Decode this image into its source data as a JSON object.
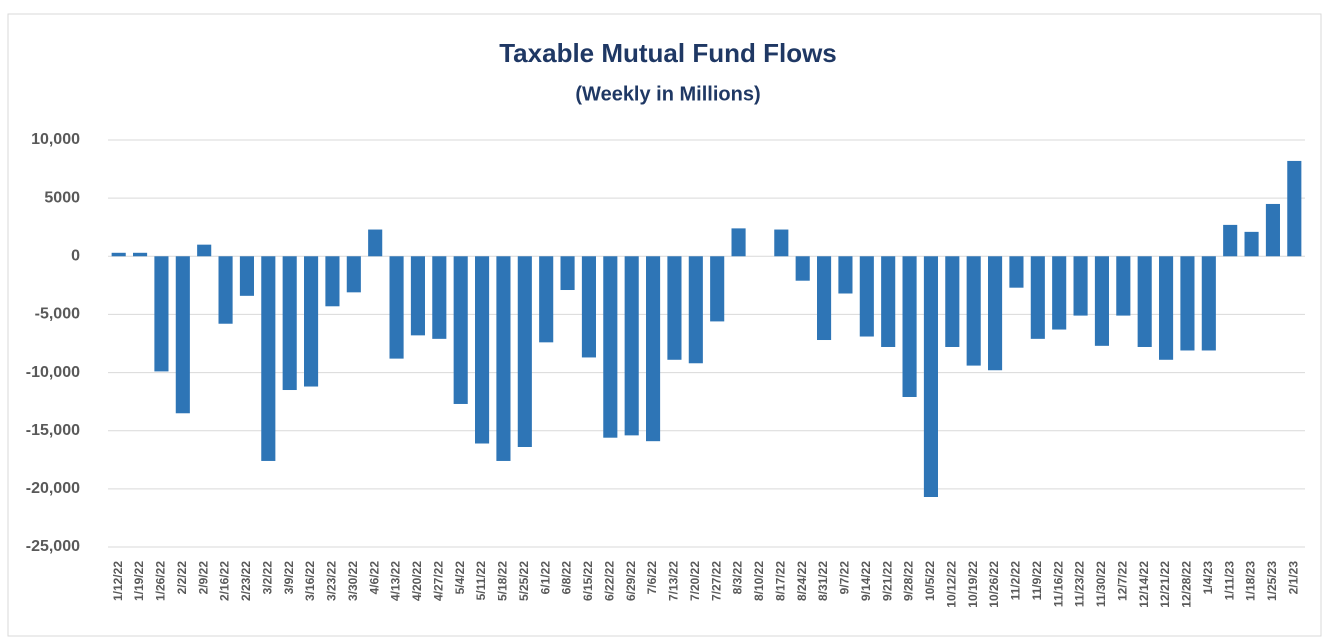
{
  "chart_data": {
    "type": "bar",
    "title": "Taxable Mutual Fund Flows",
    "subtitle": "(Weekly in Millions)",
    "categories": [
      "1/12/22",
      "1/19/22",
      "1/26/22",
      "2/2/22",
      "2/9/22",
      "2/16/22",
      "2/23/22",
      "3/2/22",
      "3/9/22",
      "3/16/22",
      "3/23/22",
      "3/30/22",
      "4/6/22",
      "4/13/22",
      "4/20/22",
      "4/27/22",
      "5/4/22",
      "5/11/22",
      "5/18/22",
      "5/25/22",
      "6/1/22",
      "6/8/22",
      "6/15/22",
      "6/22/22",
      "6/29/22",
      "7/6/22",
      "7/13/22",
      "7/20/22",
      "7/27/22",
      "8/3/22",
      "8/10/22",
      "8/17/22",
      "8/24/22",
      "8/31/22",
      "9/7/22",
      "9/14/22",
      "9/21/22",
      "9/28/22",
      "10/5/22",
      "10/12/22",
      "10/19/22",
      "10/26/22",
      "11/2/22",
      "11/9/22",
      "11/16/22",
      "11/23/22",
      "11/30/22",
      "12/7/22",
      "12/14/22",
      "12/21/22",
      "12/28/22",
      "1/4/23",
      "1/11/23",
      "1/18/23",
      "1/25/23",
      "2/1/23"
    ],
    "values": [
      300,
      300,
      -9900,
      -13500,
      1000,
      -5800,
      -3400,
      -17600,
      -11500,
      -11200,
      -4300,
      -3100,
      2300,
      -8800,
      -6800,
      -7100,
      -12700,
      -16100,
      -17600,
      -16400,
      -7400,
      -2900,
      -8700,
      -15600,
      -15400,
      -15900,
      -8900,
      -9200,
      -5600,
      2400,
      0,
      2300,
      -2100,
      -7200,
      -3200,
      -6900,
      -7800,
      -12100,
      -20700,
      -7800,
      -9400,
      -9800,
      -2700,
      -7100,
      -6300,
      -5100,
      -7700,
      -5100,
      -7800,
      -8900,
      -8100,
      -8100,
      2700,
      2100,
      4500,
      8200
    ],
    "color": "#2e75b6",
    "ylim": [
      -25000,
      10000
    ],
    "yticks": [
      {
        "value": -25000,
        "label": "-25,000"
      },
      {
        "value": -20000,
        "label": "-20,000"
      },
      {
        "value": -15000,
        "label": "-15,000"
      },
      {
        "value": -10000,
        "label": "-10,000"
      },
      {
        "value": -5000,
        "label": "-5,000"
      },
      0,
      {
        "value": 5000,
        "label": "5000"
      },
      {
        "value": 10000,
        "label": "10,000"
      }
    ],
    "grid": true
  }
}
